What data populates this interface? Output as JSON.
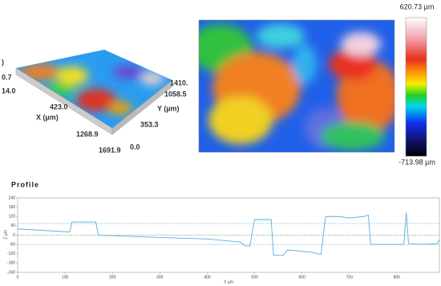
{
  "surface_3d": {
    "labels": [
      ")",
      "0.7",
      "14.0",
      "423.0",
      "X (µm)",
      "1268.9",
      "1691.9",
      "0.0",
      "353.3",
      "Y (µm)",
      "1058.5",
      "1410."
    ]
  },
  "colorbar": {
    "max_label": "620.73 µm",
    "min_label": "-713.98 µm"
  },
  "chart_data": {
    "type": "line",
    "title": "Profile",
    "x_label": "X µm",
    "y_label": "Z µm",
    "xlim": [
      0,
      890
    ],
    "ylim": [
      -240,
      240
    ],
    "xticks": [
      0,
      100,
      200,
      300,
      400,
      500,
      600,
      700,
      800
    ],
    "yticks": [
      -240,
      -180,
      -120,
      -60,
      0,
      60,
      120,
      180,
      240
    ],
    "reference_lines": [
      {
        "value": 75,
        "color": "#5bb8d6"
      },
      {
        "value": 0,
        "color": "#4caf50"
      },
      {
        "value": -60,
        "color": "#5bb8d6"
      }
    ],
    "series": [
      {
        "color": "#5aaedc",
        "x": [
          0,
          110,
          115,
          165,
          170,
          300,
          400,
          470,
          480,
          490,
          500,
          535,
          540,
          560,
          570,
          620,
          640,
          650,
          680,
          700,
          730,
          740,
          745,
          800,
          815,
          820,
          825,
          850,
          885,
          890
        ],
        "values": [
          40,
          20,
          85,
          85,
          0,
          -15,
          -25,
          -45,
          -70,
          -70,
          100,
          100,
          -130,
          -130,
          -95,
          -110,
          -125,
          120,
          120,
          110,
          120,
          130,
          -60,
          -60,
          -60,
          145,
          -55,
          -60,
          -55,
          -30
        ]
      }
    ]
  }
}
